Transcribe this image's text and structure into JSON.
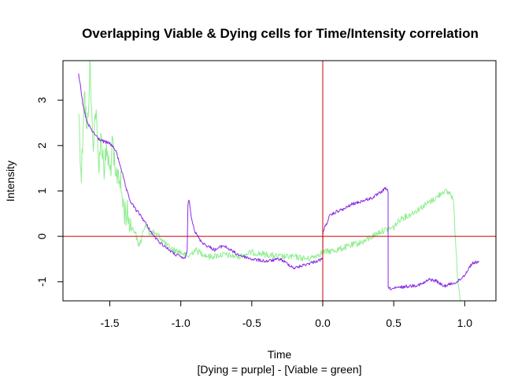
{
  "chart_data": {
    "type": "line",
    "title": "Overlapping Viable & Dying cells for Time/Intensity correlation",
    "xlabel": "Time",
    "xsublabel": "[Dying = purple] - [Viable = green]",
    "ylabel": "Intensity",
    "xlim": [
      -1.83,
      1.22
    ],
    "ylim": [
      -1.42,
      3.87
    ],
    "xticks": [
      -1.5,
      -1.0,
      -0.5,
      0.0,
      0.5,
      1.0
    ],
    "xtick_labels": [
      "-1.5",
      "-1.0",
      "-0.5",
      "0.0",
      "0.5",
      "1.0"
    ],
    "yticks": [
      -1,
      0,
      1,
      2,
      3
    ],
    "ytick_labels": [
      "-1",
      "0",
      "1",
      "2",
      "3"
    ],
    "grid": false,
    "reference_lines": [
      {
        "orientation": "vertical",
        "value": 0,
        "color": "#cc0000"
      },
      {
        "orientation": "horizontal",
        "value": 0,
        "color": "#cc0000"
      }
    ],
    "series": [
      {
        "color": "#8a2be2",
        "x": [
          -1.72,
          -1.69,
          -1.66,
          -1.62,
          -1.58,
          -1.54,
          -1.5,
          -1.46,
          -1.42,
          -1.39,
          -1.36,
          -1.32,
          -1.28,
          -1.24,
          -1.2,
          -1.16,
          -1.12,
          -1.08,
          -1.04,
          -1.0,
          -0.97,
          -0.955,
          -0.95,
          -0.94,
          -0.93,
          -0.9,
          -0.86,
          -0.82,
          -0.76,
          -0.7,
          -0.6,
          -0.5,
          -0.4,
          -0.3,
          -0.25,
          -0.2,
          -0.15,
          -0.1,
          -0.05,
          0.0,
          0.001,
          0.05,
          0.1,
          0.15,
          0.2,
          0.25,
          0.3,
          0.35,
          0.4,
          0.44,
          0.46,
          0.461,
          0.5,
          0.55,
          0.6,
          0.65,
          0.7,
          0.75,
          0.8,
          0.85,
          0.9,
          0.95,
          1.0,
          1.05,
          1.1
        ],
        "y": [
          3.6,
          2.9,
          2.5,
          2.3,
          2.15,
          2.08,
          2.05,
          1.9,
          1.5,
          1.1,
          0.8,
          0.6,
          0.45,
          0.25,
          0.05,
          -0.1,
          -0.2,
          -0.3,
          -0.4,
          -0.45,
          -0.5,
          -0.3,
          0.7,
          0.8,
          0.5,
          0.1,
          -0.1,
          -0.2,
          -0.3,
          -0.2,
          -0.4,
          -0.5,
          -0.55,
          -0.5,
          -0.6,
          -0.7,
          -0.65,
          -0.6,
          -0.55,
          -0.5,
          0.1,
          0.45,
          0.55,
          0.6,
          0.7,
          0.75,
          0.8,
          0.85,
          0.95,
          1.05,
          1.0,
          -1.15,
          -1.15,
          -1.12,
          -1.1,
          -1.08,
          -1.05,
          -0.95,
          -0.98,
          -1.1,
          -1.05,
          -1.0,
          -0.85,
          -0.6,
          -0.55
        ]
      },
      {
        "color": "#90ee90",
        "x": [
          -1.72,
          -1.7,
          -1.68,
          -1.66,
          -1.64,
          -1.62,
          -1.6,
          -1.58,
          -1.56,
          -1.54,
          -1.52,
          -1.5,
          -1.48,
          -1.46,
          -1.44,
          -1.42,
          -1.4,
          -1.38,
          -1.35,
          -1.32,
          -1.3,
          -1.28,
          -1.25,
          -1.22,
          -1.2,
          -1.15,
          -1.1,
          -1.05,
          -1.0,
          -0.95,
          -0.9,
          -0.8,
          -0.7,
          -0.6,
          -0.5,
          -0.4,
          -0.3,
          -0.2,
          -0.1,
          0.0,
          0.1,
          0.2,
          0.3,
          0.4,
          0.5,
          0.55,
          0.6,
          0.65,
          0.7,
          0.75,
          0.8,
          0.85,
          0.9,
          0.92,
          0.95,
          0.97
        ],
        "y": [
          2.8,
          1.3,
          3.3,
          2.2,
          3.8,
          2.0,
          2.8,
          1.6,
          2.2,
          1.5,
          1.9,
          1.4,
          2.0,
          1.2,
          1.5,
          1.0,
          0.6,
          0.5,
          0.2,
          0.1,
          -0.2,
          -0.1,
          0.3,
          0.05,
          0.1,
          0.0,
          -0.2,
          -0.3,
          -0.35,
          -0.45,
          -0.3,
          -0.45,
          -0.4,
          -0.45,
          -0.35,
          -0.4,
          -0.45,
          -0.45,
          -0.5,
          -0.35,
          -0.3,
          -0.2,
          -0.1,
          0.1,
          0.2,
          0.4,
          0.45,
          0.55,
          0.65,
          0.75,
          0.85,
          1.0,
          0.95,
          0.8,
          -0.9,
          -1.42
        ]
      }
    ]
  }
}
